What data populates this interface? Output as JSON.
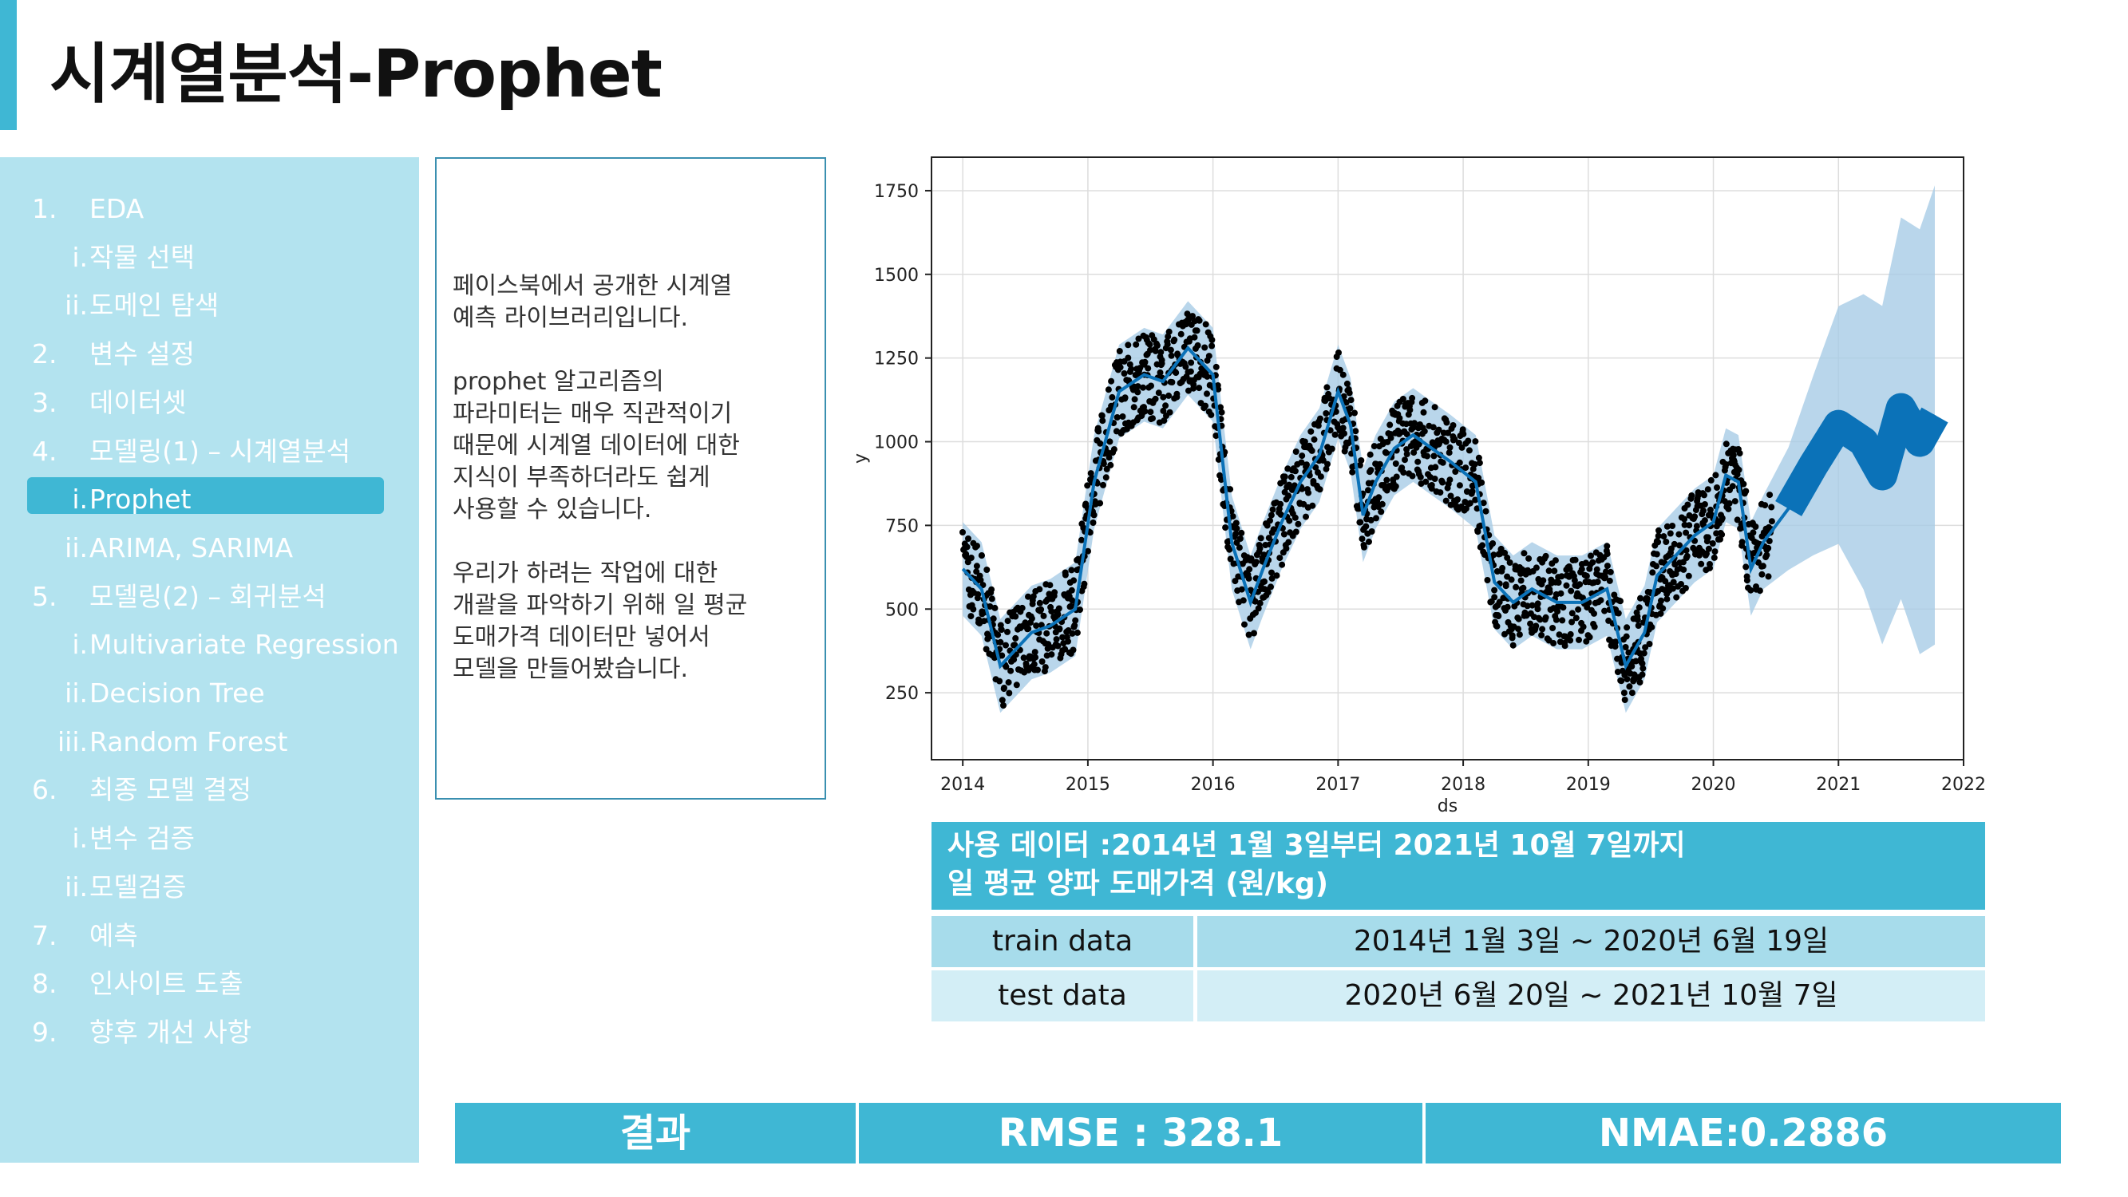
{
  "header": {
    "title": "시계열분석-Prophet"
  },
  "sidebar": {
    "items": [
      {
        "num": "1.",
        "label": "EDA",
        "level": 1,
        "active": false
      },
      {
        "num": "i.",
        "label": "작물 선택",
        "level": 2,
        "active": false
      },
      {
        "num": "ii.",
        "label": "도메인 탐색",
        "level": 2,
        "active": false
      },
      {
        "num": "2.",
        "label": "변수 설정",
        "level": 1,
        "active": false
      },
      {
        "num": "3.",
        "label": "데이터셋",
        "level": 1,
        "active": false
      },
      {
        "num": "4.",
        "label": "모델링(1) – 시계열분석",
        "level": 1,
        "active": false
      },
      {
        "num": "i.",
        "label": "Prophet",
        "level": 2,
        "active": true
      },
      {
        "num": "ii.",
        "label": "ARIMA, SARIMA",
        "level": 2,
        "active": false
      },
      {
        "num": "5.",
        "label": "모델링(2) – 회귀분석",
        "level": 1,
        "active": false
      },
      {
        "num": "i.",
        "label": "Multivariate Regression",
        "level": 2,
        "active": false
      },
      {
        "num": "ii.",
        "label": "Decision Tree",
        "level": 2,
        "active": false
      },
      {
        "num": "iii.",
        "label": "Random Forest",
        "level": 2,
        "active": false
      },
      {
        "num": "6.",
        "label": "최종 모델 결정",
        "level": 1,
        "active": false
      },
      {
        "num": "i.",
        "label": "변수 검증",
        "level": 2,
        "active": false
      },
      {
        "num": "ii.",
        "label": "모델검증",
        "level": 2,
        "active": false
      },
      {
        "num": "7.",
        "label": "예측",
        "level": 1,
        "active": false
      },
      {
        "num": "8.",
        "label": "인사이트 도출",
        "level": 1,
        "active": false
      },
      {
        "num": "9.",
        "label": "향후 개선 사항",
        "level": 1,
        "active": false
      }
    ]
  },
  "description": {
    "p1": "페이스북에서 공개한 시계열\n예측 라이브러리입니다.",
    "p2": "prophet 알고리즘의\n파라미터는 매우 직관적이기\n때문에 시계열 데이터에 대한\n지식이 부족하더라도 쉽게\n사용할 수 있습니다.",
    "p3": "우리가 하려는 작업에 대한\n개괄을 파악하기 위해 일 평균\n도매가격 데이터만 넣어서\n모델을 만들어봤습니다."
  },
  "chart_data": {
    "type": "line",
    "xlabel": "ds",
    "ylabel": "y",
    "xlim": [
      2013.75,
      2022.0
    ],
    "ylim": [
      50,
      1850
    ],
    "xticks": [
      "2014",
      "2015",
      "2016",
      "2017",
      "2018",
      "2019",
      "2020",
      "2021",
      "2022"
    ],
    "yticks": [
      "250",
      "500",
      "750",
      "1000",
      "1250",
      "1500",
      "1750"
    ],
    "grid": true,
    "colors": {
      "forecast": "#0b72b8",
      "interval": "#a8cce6",
      "observed": "#000000"
    },
    "series": [
      {
        "role": "forecast",
        "x": [
          2014.0,
          2014.15,
          2014.3,
          2014.4,
          2014.55,
          2014.7,
          2014.9,
          2015.05,
          2015.25,
          2015.45,
          2015.6,
          2015.8,
          2016.0,
          2016.15,
          2016.3,
          2016.4,
          2016.55,
          2016.7,
          2016.85,
          2017.0,
          2017.1,
          2017.2,
          2017.3,
          2017.45,
          2017.6,
          2017.75,
          2017.9,
          2018.1,
          2018.25,
          2018.4,
          2018.55,
          2018.75,
          2018.95,
          2019.15,
          2019.3,
          2019.45,
          2019.55,
          2019.7,
          2019.85,
          2020.0,
          2020.1,
          2020.2,
          2020.3,
          2020.4,
          2020.6,
          2020.8,
          2021.0,
          2021.2,
          2021.35,
          2021.5,
          2021.65,
          2021.77
        ],
        "y": [
          620,
          560,
          330,
          370,
          430,
          450,
          500,
          880,
          1150,
          1200,
          1180,
          1280,
          1200,
          700,
          520,
          620,
          760,
          880,
          960,
          1150,
          1050,
          780,
          880,
          980,
          1020,
          980,
          940,
          880,
          580,
          520,
          560,
          520,
          520,
          560,
          330,
          430,
          600,
          660,
          720,
          760,
          900,
          880,
          620,
          700,
          800,
          930,
          1050,
          1000,
          900,
          1100,
          1000,
          1080
        ]
      },
      {
        "role": "observed",
        "label": "daily average price (points)"
      }
    ]
  },
  "data_info": {
    "header_line1": "사용 데이터 :2014년 1월 3일부터 2021년 10월 7일까지",
    "header_line2": "일 평균 양파 도매가격 (원/kg)",
    "rows": [
      {
        "label": "train data",
        "value": "2014년 1월 3일 ~ 2020년 6월 19일"
      },
      {
        "label": "test data",
        "value": "2020년 6월 20일 ~ 2021년 10월 7일"
      }
    ]
  },
  "result": {
    "label": "결과",
    "rmse": "RMSE : 328.1",
    "nmae": "NMAE:0.2886"
  }
}
